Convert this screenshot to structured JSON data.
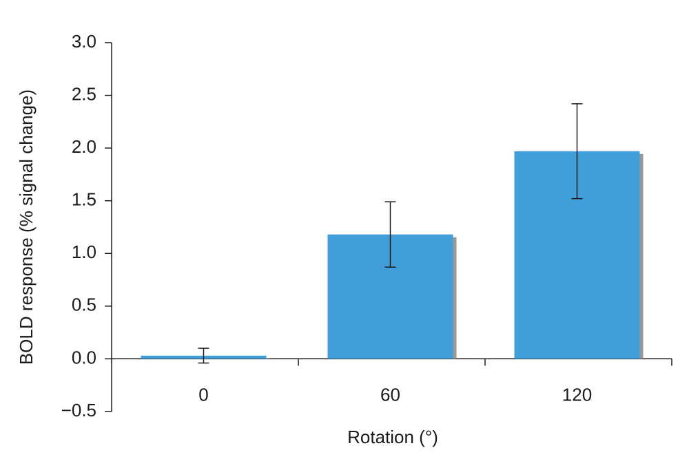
{
  "chart_data": {
    "type": "bar",
    "x_label": "Rotation (°)",
    "y_label": "BOLD response (% signal change)",
    "categories": [
      "0",
      "60",
      "120"
    ],
    "values": [
      0.03,
      1.18,
      1.97
    ],
    "errors": [
      0.07,
      0.31,
      0.45
    ],
    "color": "#429ed8",
    "shadow_color": "#999999",
    "ylim": [
      -0.5,
      3.0
    ],
    "yticks": [
      {
        "value": -0.5,
        "label": "−0.5"
      },
      {
        "value": 0,
        "label": "0.0"
      },
      {
        "value": 0.5,
        "label": "0.5"
      },
      {
        "value": 1,
        "label": "1.0"
      },
      {
        "value": 1.5,
        "label": "1.5"
      },
      {
        "value": 2,
        "label": "2.0"
      },
      {
        "value": 2.5,
        "label": "2.5"
      },
      {
        "value": 3,
        "label": "3.0"
      }
    ],
    "grid": false
  }
}
